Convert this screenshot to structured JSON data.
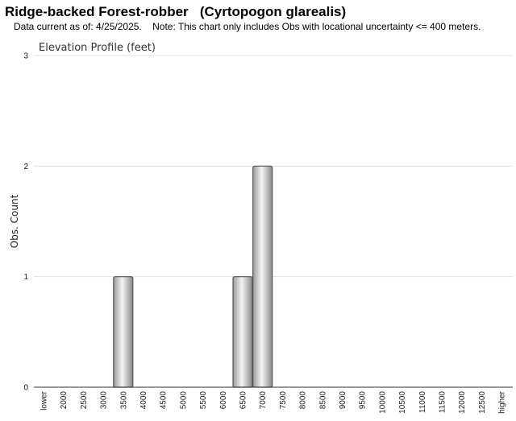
{
  "header": {
    "title": "Ridge-backed Forest-robber   (Cyrtopogon glarealis)",
    "subtitle": "Data current as of: 4/25/2025.    Note: This chart only includes Obs with locational uncertainty <= 400 meters."
  },
  "chart_data": {
    "type": "bar",
    "title": "Elevation Profile (feet)",
    "xlabel": "",
    "ylabel": "Obs. Count",
    "ylim": [
      0,
      3
    ],
    "yticks": [
      0,
      1,
      2,
      3
    ],
    "grid": true,
    "categories": [
      "lower",
      "2000",
      "2500",
      "3000",
      "3500",
      "4000",
      "4500",
      "5000",
      "5500",
      "6000",
      "6500",
      "7000",
      "7500",
      "8000",
      "8500",
      "9000",
      "9500",
      "10000",
      "10500",
      "11000",
      "11500",
      "12000",
      "12500",
      "higher"
    ],
    "values": [
      0,
      0,
      0,
      0,
      1,
      0,
      0,
      0,
      0,
      0,
      1,
      2,
      0,
      0,
      0,
      0,
      0,
      0,
      0,
      0,
      0,
      0,
      0,
      0
    ],
    "colors": {
      "bar_edge": "#555555",
      "bar_light": "#f4f4f4",
      "bar_dark": "#8a8a8a",
      "grid": "#e2e2e2"
    }
  }
}
